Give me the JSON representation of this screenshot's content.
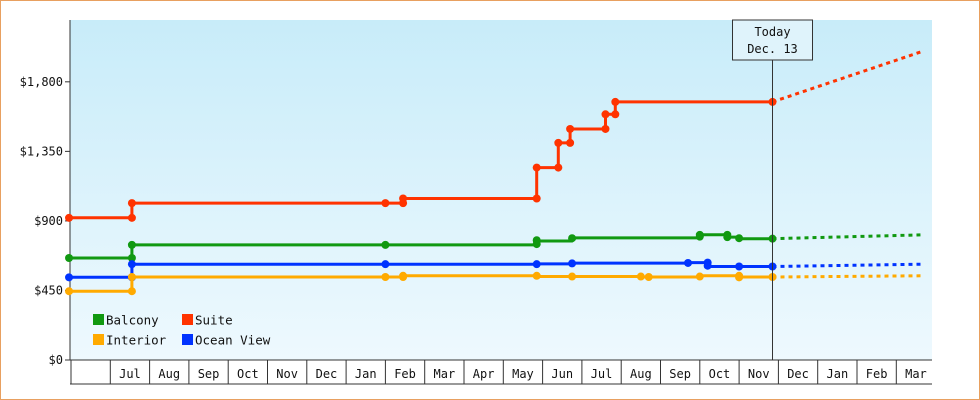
{
  "chart_data": {
    "type": "line",
    "title": "",
    "xlabel": "",
    "ylabel": "",
    "ylim": [
      0,
      2200
    ],
    "y_ticks": [
      0,
      450,
      900,
      1350,
      1800
    ],
    "y_tick_labels": [
      "$0",
      "$450",
      "$900",
      "$1,350",
      "$1,800"
    ],
    "months": [
      "",
      "Jul",
      "Aug",
      "Sep",
      "Oct",
      "Nov",
      "Dec",
      "Jan",
      "Feb",
      "Mar",
      "Apr",
      "May",
      "Jun",
      "Jul",
      "Aug",
      "Sep",
      "Oct",
      "Nov",
      "Dec",
      "Jan",
      "Feb",
      "Mar"
    ],
    "x_unit": "months since start of axis (index 0 = Jun)",
    "today": {
      "x": 17.85,
      "line1": "Today",
      "line2": "Dec. 13"
    },
    "forecast_end_x": 21.7,
    "legend": {
      "placement": "bottom-left",
      "columns": [
        [
          "Balcony",
          "Interior"
        ],
        [
          "Suite",
          "Ocean View"
        ]
      ]
    },
    "series": [
      {
        "name": "Suite",
        "color": "#ff3300",
        "step_points": [
          [
            -0.05,
            920
          ],
          [
            1.55,
            920
          ],
          [
            1.55,
            1015
          ],
          [
            8.0,
            1015
          ],
          [
            8.45,
            1015
          ],
          [
            8.45,
            1045
          ],
          [
            11.85,
            1045
          ],
          [
            11.85,
            1245
          ],
          [
            12.4,
            1245
          ],
          [
            12.4,
            1405
          ],
          [
            12.7,
            1405
          ],
          [
            12.7,
            1495
          ],
          [
            13.6,
            1495
          ],
          [
            13.6,
            1590
          ],
          [
            13.85,
            1590
          ],
          [
            13.85,
            1670
          ],
          [
            17.85,
            1670
          ]
        ],
        "markers": [
          [
            -0.05,
            920
          ],
          [
            1.55,
            920
          ],
          [
            1.55,
            1015
          ],
          [
            8.0,
            1015
          ],
          [
            8.45,
            1015
          ],
          [
            8.45,
            1045
          ],
          [
            11.85,
            1045
          ],
          [
            11.85,
            1245
          ],
          [
            12.4,
            1245
          ],
          [
            12.4,
            1405
          ],
          [
            12.7,
            1405
          ],
          [
            12.7,
            1495
          ],
          [
            13.6,
            1495
          ],
          [
            13.6,
            1590
          ],
          [
            13.85,
            1590
          ],
          [
            13.85,
            1670
          ],
          [
            17.85,
            1670
          ]
        ],
        "forecast_end_value": 2000
      },
      {
        "name": "Balcony",
        "color": "#119911",
        "step_points": [
          [
            -0.05,
            660
          ],
          [
            1.55,
            660
          ],
          [
            1.55,
            745
          ],
          [
            8.0,
            745
          ],
          [
            11.85,
            745
          ],
          [
            11.85,
            770
          ],
          [
            12.75,
            770
          ],
          [
            12.75,
            790
          ],
          [
            16.0,
            790
          ],
          [
            16.0,
            810
          ],
          [
            16.7,
            810
          ],
          [
            16.7,
            795
          ],
          [
            17.0,
            795
          ],
          [
            17.0,
            785
          ],
          [
            17.85,
            785
          ]
        ],
        "markers": [
          [
            -0.05,
            660
          ],
          [
            1.55,
            660
          ],
          [
            1.55,
            745
          ],
          [
            8.0,
            745
          ],
          [
            11.85,
            750
          ],
          [
            11.85,
            775
          ],
          [
            12.75,
            788
          ],
          [
            16.0,
            798
          ],
          [
            16.0,
            810
          ],
          [
            16.7,
            810
          ],
          [
            16.7,
            795
          ],
          [
            17.0,
            788
          ],
          [
            17.85,
            785
          ]
        ],
        "forecast_end_value": 810
      },
      {
        "name": "Ocean View",
        "color": "#0033ff",
        "step_points": [
          [
            -0.05,
            535
          ],
          [
            1.55,
            535
          ],
          [
            1.55,
            620
          ],
          [
            8.0,
            620
          ],
          [
            11.85,
            620
          ],
          [
            11.85,
            622
          ],
          [
            12.75,
            622
          ],
          [
            12.75,
            627
          ],
          [
            15.7,
            627
          ],
          [
            15.7,
            630
          ],
          [
            16.2,
            630
          ],
          [
            16.2,
            605
          ],
          [
            17.85,
            605
          ]
        ],
        "markers": [
          [
            -0.05,
            535
          ],
          [
            1.55,
            535
          ],
          [
            1.55,
            620
          ],
          [
            8.0,
            620
          ],
          [
            11.85,
            620
          ],
          [
            12.75,
            625
          ],
          [
            15.7,
            628
          ],
          [
            16.2,
            630
          ],
          [
            16.2,
            610
          ],
          [
            17.0,
            605
          ],
          [
            17.85,
            605
          ]
        ],
        "forecast_end_value": 620
      },
      {
        "name": "Interior",
        "color": "#ffaa00",
        "step_points": [
          [
            -0.05,
            445
          ],
          [
            1.55,
            445
          ],
          [
            1.55,
            537
          ],
          [
            8.0,
            537
          ],
          [
            8.45,
            537
          ],
          [
            8.45,
            545
          ],
          [
            11.85,
            545
          ],
          [
            11.85,
            540
          ],
          [
            14.5,
            540
          ],
          [
            14.5,
            537
          ],
          [
            16.0,
            537
          ],
          [
            16.0,
            545
          ],
          [
            17.0,
            545
          ],
          [
            17.0,
            537
          ],
          [
            17.85,
            537
          ]
        ],
        "markers": [
          [
            -0.05,
            445
          ],
          [
            1.55,
            445
          ],
          [
            1.55,
            537
          ],
          [
            8.0,
            537
          ],
          [
            8.45,
            537
          ],
          [
            8.45,
            545
          ],
          [
            11.85,
            545
          ],
          [
            12.75,
            540
          ],
          [
            14.5,
            540
          ],
          [
            14.7,
            537
          ],
          [
            16.0,
            540
          ],
          [
            17.0,
            545
          ],
          [
            17.0,
            535
          ],
          [
            17.85,
            537
          ]
        ],
        "forecast_end_value": 545
      }
    ]
  }
}
